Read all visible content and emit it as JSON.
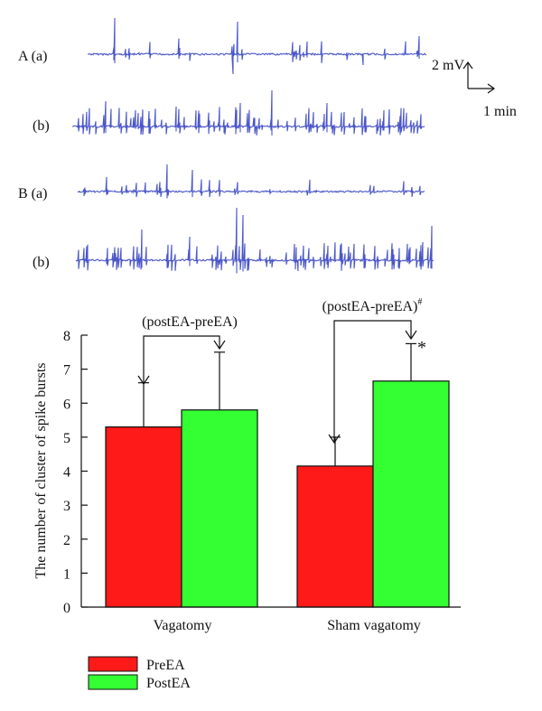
{
  "traces": {
    "labels": {
      "a1": "A (a)",
      "b1": "(b)",
      "a2": "B (a)",
      "b2": "(b)"
    },
    "scale_bar": {
      "voltage": "2 mV",
      "time": "1 min"
    },
    "color": "#4a56c8"
  },
  "legend": {
    "items": [
      {
        "label": "PreEA",
        "color": "#ff1a1a"
      },
      {
        "label": "PostEA",
        "color": "#33ff33"
      }
    ]
  },
  "chart_data": {
    "type": "bar",
    "title": "",
    "xlabel": "",
    "ylabel": "The number of cluster of spike bursts",
    "ylim": [
      0,
      8
    ],
    "yticks": [
      "0",
      "1",
      "2",
      "3",
      "4",
      "5",
      "6",
      "7",
      "8"
    ],
    "categories": [
      "Vagatomy",
      "Sham vagatomy"
    ],
    "series": [
      {
        "name": "PreEA",
        "color": "#ff1a1a",
        "values": [
          5.3,
          4.15
        ],
        "error_upper": [
          6.6,
          5.0
        ]
      },
      {
        "name": "PostEA",
        "color": "#33ff33",
        "values": [
          5.8,
          6.65
        ],
        "error_upper": [
          7.5,
          7.75
        ]
      }
    ],
    "annotations": {
      "bracket_1": "(postEA-preEA)",
      "bracket_2": "(postEA-preEA)",
      "bracket_2_sup": "#",
      "significance": "*"
    }
  }
}
